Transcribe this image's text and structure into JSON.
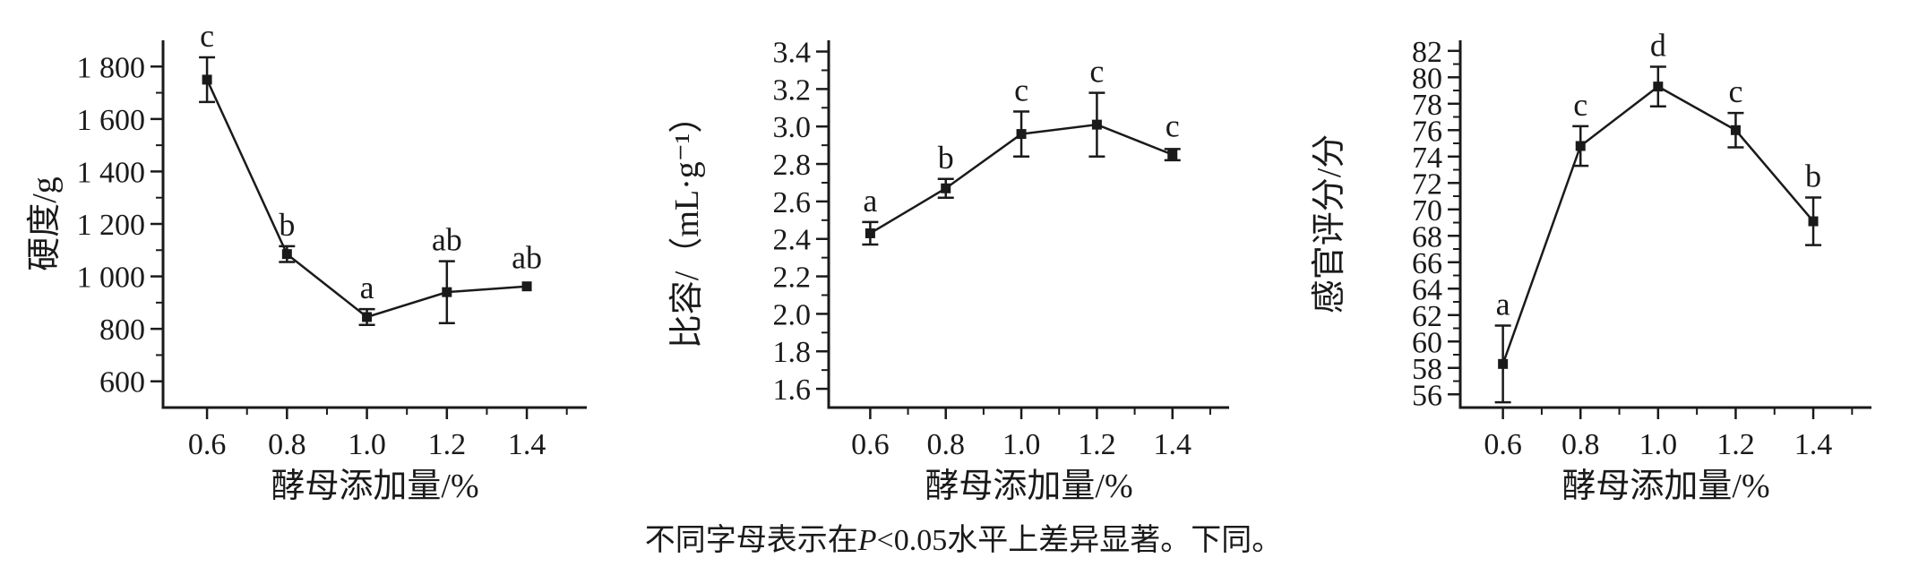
{
  "page": {
    "background": "#ffffff",
    "ink": "#1a1a1a"
  },
  "caption": {
    "prefix": "不同字母表示在",
    "italic": "P",
    "suffix": "<0.05水平上差异显著。下同。"
  },
  "chart_data": [
    {
      "id": "hardness",
      "type": "line",
      "title": "",
      "xlabel": "酵母添加量/%",
      "ylabel": "硬度/g",
      "x": [
        0.6,
        0.8,
        1.0,
        1.2,
        1.4
      ],
      "values": [
        1750,
        1085,
        845,
        940,
        962
      ],
      "yerr": [
        85,
        30,
        30,
        118,
        15
      ],
      "letters": [
        "c",
        "b",
        "a",
        "ab",
        "ab"
      ],
      "xlim": [
        0.49,
        1.55
      ],
      "ylim": [
        500,
        1900
      ],
      "xticks": {
        "values": [
          0.6,
          0.8,
          1.0,
          1.2,
          1.4
        ],
        "labels": [
          "0.6",
          "0.8",
          "1.0",
          "1.2",
          "1.4"
        ]
      },
      "xminor": [
        0.7,
        0.9,
        1.1,
        1.3,
        1.5
      ],
      "yticks": {
        "values": [
          600,
          800,
          1000,
          1200,
          1400,
          1600,
          1800
        ],
        "labels": [
          "600",
          "800",
          "1 000",
          "1 200",
          "1 400",
          "1 600",
          "1 800"
        ]
      },
      "yminor": [
        700,
        900,
        1100,
        1300,
        1500,
        1700
      ],
      "grid": false,
      "legend": "none",
      "marker": "square",
      "line_color": "#1a1a1a"
    },
    {
      "id": "specific-volume",
      "type": "line",
      "title": "",
      "xlabel": "酵母添加量/%",
      "ylabel": "比容/（mL·g⁻¹）",
      "x": [
        0.6,
        0.8,
        1.0,
        1.2,
        1.4
      ],
      "values": [
        2.43,
        2.67,
        2.96,
        3.01,
        2.85
      ],
      "yerr": [
        0.06,
        0.05,
        0.12,
        0.17,
        0.03
      ],
      "letters": [
        "a",
        "b",
        "c",
        "c",
        "c"
      ],
      "xlim": [
        0.49,
        1.55
      ],
      "ylim": [
        1.5,
        3.46
      ],
      "xticks": {
        "values": [
          0.6,
          0.8,
          1.0,
          1.2,
          1.4
        ],
        "labels": [
          "0.6",
          "0.8",
          "1.0",
          "1.2",
          "1.4"
        ]
      },
      "xminor": [
        0.7,
        0.9,
        1.1,
        1.3,
        1.5
      ],
      "yticks": {
        "values": [
          1.6,
          1.8,
          2.0,
          2.2,
          2.4,
          2.6,
          2.8,
          3.0,
          3.2,
          3.4
        ],
        "labels": [
          "1.6",
          "1.8",
          "2.0",
          "2.2",
          "2.4",
          "2.6",
          "2.8",
          "3.0",
          "3.2",
          "3.4"
        ]
      },
      "yminor": [
        1.7,
        1.9,
        2.1,
        2.3,
        2.5,
        2.7,
        2.9,
        3.1,
        3.3
      ],
      "grid": false,
      "legend": "none",
      "marker": "square",
      "line_color": "#1a1a1a"
    },
    {
      "id": "sensory-score",
      "type": "line",
      "title": "",
      "xlabel": "酵母添加量/%",
      "ylabel": "感官评分/分",
      "x": [
        0.6,
        0.8,
        1.0,
        1.2,
        1.4
      ],
      "values": [
        58.3,
        74.8,
        79.3,
        76.0,
        69.1
      ],
      "yerr": [
        2.9,
        1.5,
        1.5,
        1.3,
        1.8
      ],
      "letters": [
        "a",
        "c",
        "d",
        "c",
        "b"
      ],
      "xlim": [
        0.49,
        1.55
      ],
      "ylim": [
        55,
        82.8
      ],
      "xticks": {
        "values": [
          0.6,
          0.8,
          1.0,
          1.2,
          1.4
        ],
        "labels": [
          "0.6",
          "0.8",
          "1.0",
          "1.2",
          "1.4"
        ]
      },
      "xminor": [
        0.7,
        0.9,
        1.1,
        1.3,
        1.5
      ],
      "yticks": {
        "values": [
          56,
          58,
          60,
          62,
          64,
          66,
          68,
          70,
          72,
          74,
          76,
          78,
          80,
          82
        ],
        "labels": [
          "56",
          "58",
          "60",
          "62",
          "64",
          "66",
          "68",
          "70",
          "72",
          "74",
          "76",
          "78",
          "80",
          "82"
        ]
      },
      "yminor": [
        57,
        59,
        61,
        63,
        65,
        67,
        69,
        71,
        73,
        75,
        77,
        79,
        81
      ],
      "grid": false,
      "legend": "none",
      "marker": "square",
      "line_color": "#1a1a1a"
    }
  ]
}
